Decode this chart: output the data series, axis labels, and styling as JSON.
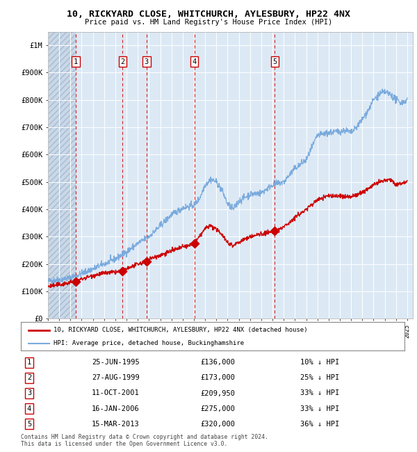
{
  "title": "10, RICKYARD CLOSE, WHITCHURCH, AYLESBURY, HP22 4NX",
  "subtitle": "Price paid vs. HM Land Registry's House Price Index (HPI)",
  "ylim": [
    0,
    1050000
  ],
  "yticks": [
    0,
    100000,
    200000,
    300000,
    400000,
    500000,
    600000,
    700000,
    800000,
    900000,
    1000000
  ],
  "ytick_labels": [
    "£0",
    "£100K",
    "£200K",
    "£300K",
    "£400K",
    "£500K",
    "£600K",
    "£700K",
    "£800K",
    "£900K",
    "£1M"
  ],
  "background_color": "#dce9f5",
  "grid_color": "#ffffff",
  "sale_color": "#cc0000",
  "hpi_color": "#7aaadd",
  "hatch_color": "#c8d8e8",
  "sale_prices": [
    136000,
    173000,
    209950,
    275000,
    320000
  ],
  "sale_labels": [
    "1",
    "2",
    "3",
    "4",
    "5"
  ],
  "vline_years": [
    1995.48,
    1999.65,
    2001.78,
    2006.04,
    2013.2
  ],
  "legend_sale": "10, RICKYARD CLOSE, WHITCHURCH, AYLESBURY, HP22 4NX (detached house)",
  "legend_hpi": "HPI: Average price, detached house, Buckinghamshire",
  "table_rows": [
    [
      "1",
      "25-JUN-1995",
      "£136,000",
      "10% ↓ HPI"
    ],
    [
      "2",
      "27-AUG-1999",
      "£173,000",
      "25% ↓ HPI"
    ],
    [
      "3",
      "11-OCT-2001",
      "£209,950",
      "33% ↓ HPI"
    ],
    [
      "4",
      "16-JAN-2006",
      "£275,000",
      "33% ↓ HPI"
    ],
    [
      "5",
      "15-MAR-2013",
      "£320,000",
      "36% ↓ HPI"
    ]
  ],
  "footnote": "Contains HM Land Registry data © Crown copyright and database right 2024.\nThis data is licensed under the Open Government Licence v3.0."
}
